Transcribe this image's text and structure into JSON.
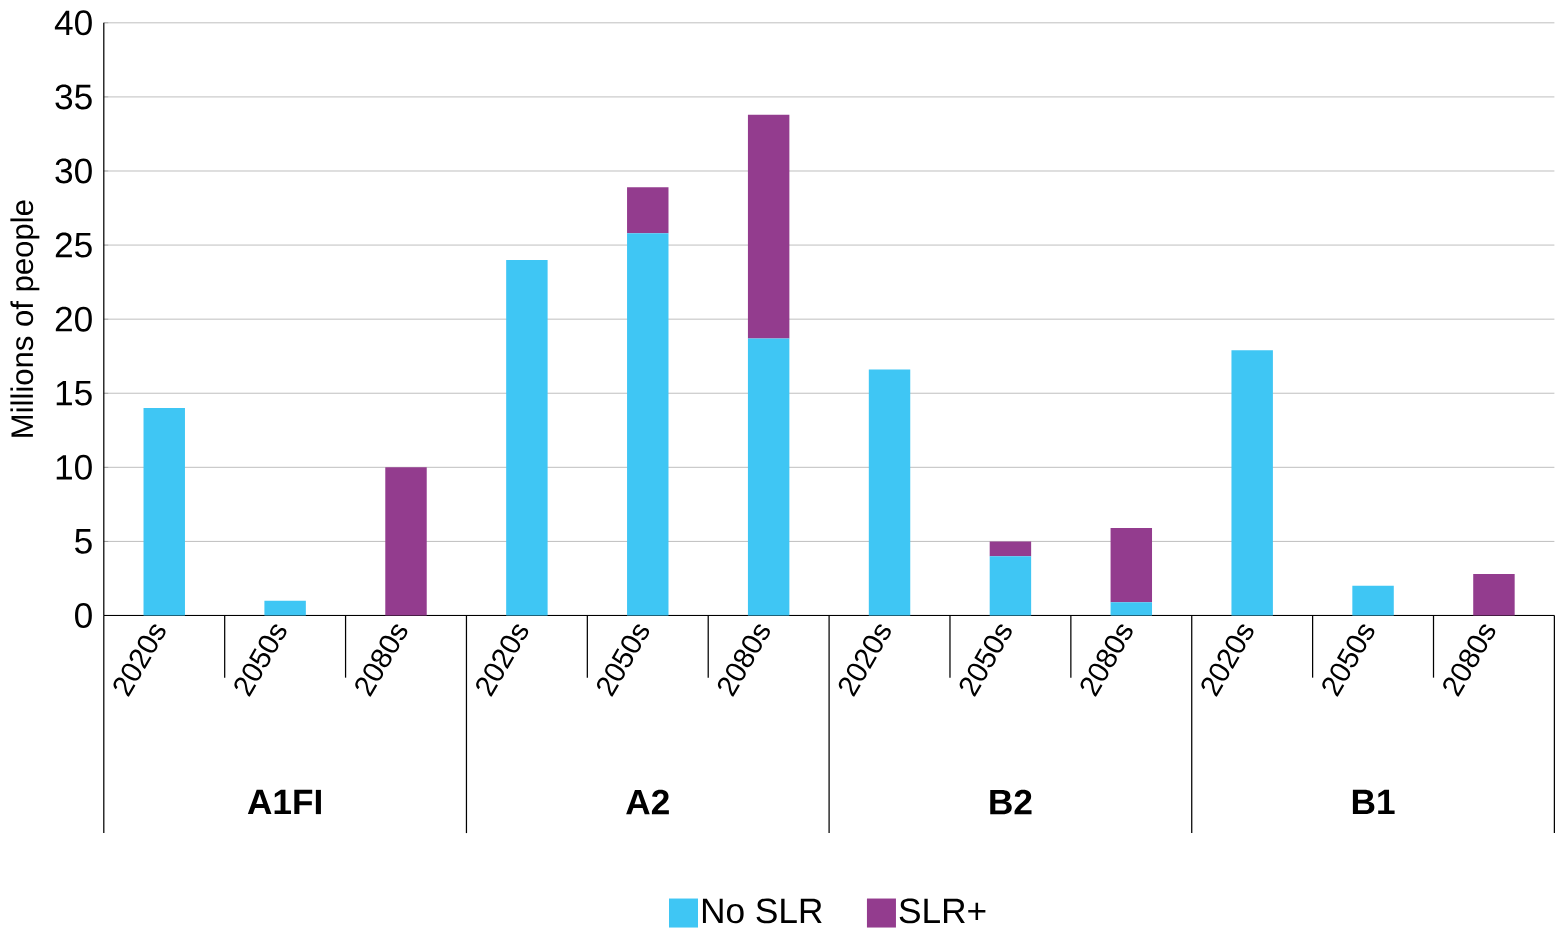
{
  "chart_data": {
    "type": "bar",
    "stacked": true,
    "ylabel": "Millions of people",
    "categories": [
      "2020s",
      "2050s",
      "2080s",
      "2020s",
      "2050s",
      "2080s",
      "2020s",
      "2050s",
      "2080s",
      "2020s",
      "2050s",
      "2080s"
    ],
    "series": [
      {
        "name": "No SLR",
        "color": "#3fc6f4",
        "values": [
          14,
          1,
          0,
          24,
          25.8,
          18.7,
          16.6,
          4,
          0.9,
          17.9,
          2,
          0
        ]
      },
      {
        "name": "SLR+",
        "color": "#933c8e",
        "values": [
          0,
          0,
          10,
          0,
          3.1,
          15.1,
          0,
          1,
          5,
          0,
          0,
          2.8
        ]
      }
    ],
    "annotations": [
      "A1FI",
      "A2",
      "B2",
      "B1"
    ],
    "ylim": [
      0,
      40
    ],
    "yticks": [
      0,
      5,
      10,
      15,
      20,
      25,
      30,
      35,
      40
    ],
    "grid": "y",
    "legend": "bottom"
  }
}
